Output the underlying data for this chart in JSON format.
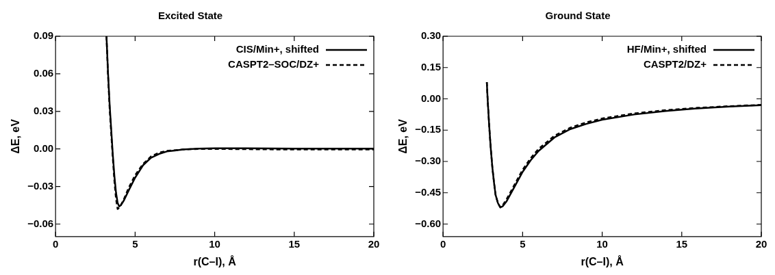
{
  "chart_data": [
    {
      "type": "line",
      "title": "Excited State",
      "xlabel": "r(C–I), Å",
      "ylabel": "ΔE, eV",
      "xlim": [
        0,
        20
      ],
      "xticks": [
        0,
        5,
        10,
        15,
        20
      ],
      "ylim": [
        -0.07,
        0.09
      ],
      "yticks": [
        {
          "value": -0.06,
          "label": "−0.06"
        },
        {
          "value": -0.03,
          "label": "−0.03"
        },
        {
          "value": 0,
          "label": "0.00"
        },
        {
          "value": 0.03,
          "label": "0.03"
        },
        {
          "value": 0.06,
          "label": "0.06"
        },
        {
          "value": 0.09,
          "label": "0.09"
        }
      ],
      "grid": false,
      "legend": "top right",
      "marker": "none",
      "series": [
        {
          "name": "CIS/Min+, shifted",
          "color": "#000000",
          "line_style": "solid",
          "x": [
            3.2,
            3.3,
            3.4,
            3.5,
            3.6,
            3.7,
            3.8,
            3.9,
            4.0,
            4.1,
            4.3,
            4.6,
            5.0,
            5.5,
            6.0,
            6.5,
            7.0,
            8.0,
            9,
            10,
            12,
            15,
            20
          ],
          "values": [
            0.09,
            0.06,
            0.035,
            0.015,
            -0.005,
            -0.022,
            -0.035,
            -0.043,
            -0.046,
            -0.045,
            -0.041,
            -0.033,
            -0.023,
            -0.013,
            -0.007,
            -0.004,
            -0.002,
            -0.0005,
            0.0003,
            0.0005,
            0.0005,
            0.0003,
            0.0002
          ]
        },
        {
          "name": "CASPT2–SOC/DZ+",
          "color": "#000000",
          "line_style": "dashed",
          "x": [
            3.2,
            3.3,
            3.4,
            3.5,
            3.6,
            3.7,
            3.8,
            3.9,
            4.0,
            4.1,
            4.3,
            4.6,
            5.0,
            5.5,
            6.0,
            6.5,
            7.0,
            8,
            9,
            10,
            12,
            15,
            20
          ],
          "values": [
            0.09,
            0.058,
            0.032,
            0.012,
            -0.008,
            -0.026,
            -0.04,
            -0.048,
            -0.047,
            -0.045,
            -0.04,
            -0.031,
            -0.021,
            -0.012,
            -0.006,
            -0.003,
            -0.0015,
            -0.0005,
            0,
            0,
            -0.0002,
            -0.0005,
            -0.0005
          ]
        }
      ]
    },
    {
      "type": "line",
      "title": "Ground State",
      "xlabel": "r(C–I), Å",
      "ylabel": "ΔE, eV",
      "xlim": [
        0,
        20
      ],
      "xticks": [
        0,
        5,
        10,
        15,
        20
      ],
      "ylim": [
        -0.66,
        0.3
      ],
      "yticks": [
        {
          "value": -0.6,
          "label": "−0.60"
        },
        {
          "value": -0.45,
          "label": "−0.45"
        },
        {
          "value": -0.3,
          "label": "−0.30"
        },
        {
          "value": -0.15,
          "label": "−0.15"
        },
        {
          "value": 0,
          "label": "0.00"
        },
        {
          "value": 0.15,
          "label": "0.15"
        },
        {
          "value": 0.3,
          "label": "0.30"
        }
      ],
      "grid": false,
      "legend": "top right",
      "marker": "none",
      "series": [
        {
          "name": "HF/Min+, shifted",
          "color": "#000000",
          "line_style": "solid",
          "x": [
            2.75,
            2.8,
            2.9,
            3.0,
            3.1,
            3.2,
            3.3,
            3.45,
            3.6,
            3.75,
            4.0,
            4.5,
            5.0,
            5.5,
            6,
            7,
            8,
            9,
            10,
            12,
            14,
            16,
            18,
            20
          ],
          "values": [
            0.08,
            0.0,
            -0.13,
            -0.24,
            -0.33,
            -0.4,
            -0.46,
            -0.5,
            -0.52,
            -0.515,
            -0.49,
            -0.42,
            -0.35,
            -0.295,
            -0.25,
            -0.185,
            -0.145,
            -0.12,
            -0.1,
            -0.075,
            -0.058,
            -0.046,
            -0.037,
            -0.03
          ]
        },
        {
          "name": "CASPT2/DZ+",
          "color": "#000000",
          "line_style": "dashed",
          "x": [
            2.75,
            2.8,
            2.9,
            3.0,
            3.1,
            3.2,
            3.3,
            3.45,
            3.6,
            3.75,
            4.0,
            4.5,
            5.0,
            5.5,
            6,
            7,
            8,
            9,
            10,
            12,
            14,
            16,
            18,
            20
          ],
          "values": [
            0.08,
            0.0,
            -0.13,
            -0.24,
            -0.33,
            -0.4,
            -0.46,
            -0.5,
            -0.52,
            -0.51,
            -0.48,
            -0.41,
            -0.34,
            -0.285,
            -0.24,
            -0.177,
            -0.138,
            -0.113,
            -0.094,
            -0.07,
            -0.054,
            -0.043,
            -0.035,
            -0.029
          ]
        }
      ]
    }
  ]
}
